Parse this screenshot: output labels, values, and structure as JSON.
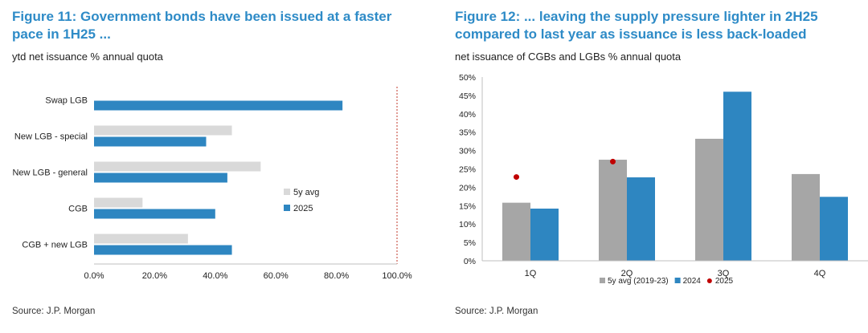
{
  "figures": [
    {
      "title": "Figure 11: Government bonds have been issued at a faster pace in 1H25 ...",
      "subtitle": "ytd net issuance % annual quota",
      "source": "Source: J.P. Morgan"
    },
    {
      "title": "Figure 12: ... leaving the supply pressure lighter in 2H25 compared to last year as issuance is less back-loaded",
      "subtitle": "net issuance of CGBs and LGBs % annual quota",
      "source": "Source: J.P. Morgan"
    }
  ],
  "chart_data": [
    {
      "type": "bar",
      "orientation": "horizontal",
      "categories": [
        "Swap LGB",
        "New LGB - special",
        "New LGB - general",
        "CGB",
        "CGB + new LGB"
      ],
      "series": [
        {
          "name": "5y avg",
          "values": [
            null,
            45.5,
            55,
            16,
            31
          ],
          "color": "#d9d9d9"
        },
        {
          "name": "2025",
          "values": [
            82,
            37,
            44,
            40,
            45.5
          ],
          "color": "#2e86c1"
        }
      ],
      "xlim": [
        0,
        100
      ],
      "xticks": [
        "0.0%",
        "20.0%",
        "40.0%",
        "60.0%",
        "80.0%",
        "100.0%"
      ],
      "reference_line": {
        "x": 100,
        "color": "#c0392b",
        "style": "dotted"
      },
      "legend_position": "right"
    },
    {
      "type": "bar",
      "categories": [
        "1Q",
        "2Q",
        "3Q",
        "4Q"
      ],
      "series": [
        {
          "name": "5y avg (2019-23)",
          "values": [
            15.8,
            27.5,
            33.2,
            23.6
          ],
          "color": "#a6a6a6",
          "kind": "bar"
        },
        {
          "name": "2024",
          "values": [
            14.2,
            22.7,
            46,
            17.4
          ],
          "color": "#2e86c1",
          "kind": "bar"
        },
        {
          "name": "2025",
          "values": [
            22.8,
            27,
            null,
            null
          ],
          "color": "#c00000",
          "kind": "marker"
        }
      ],
      "ylim": [
        0,
        50
      ],
      "yticks": [
        "0%",
        "5%",
        "10%",
        "15%",
        "20%",
        "25%",
        "30%",
        "35%",
        "40%",
        "45%",
        "50%"
      ],
      "legend_position": "bottom"
    }
  ]
}
